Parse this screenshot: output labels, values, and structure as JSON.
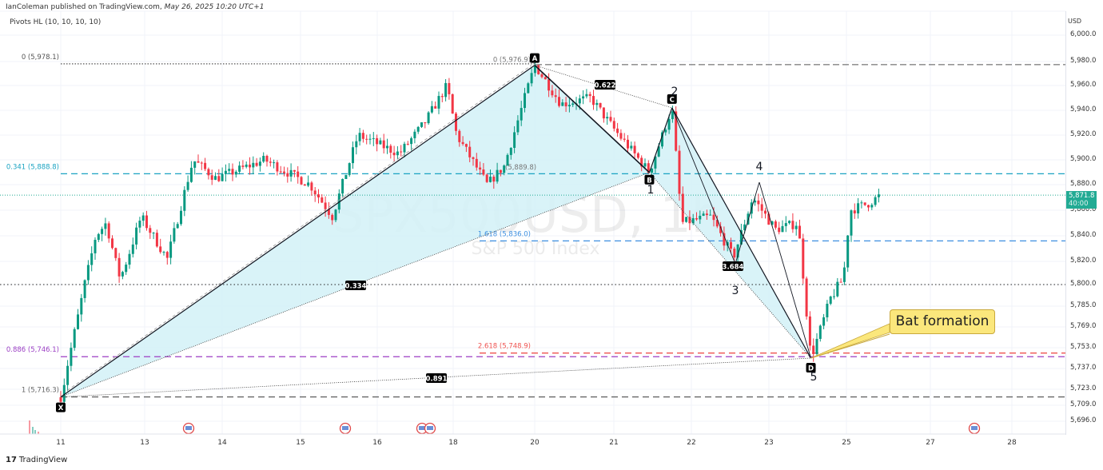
{
  "header": {
    "publisher": "IanColeman published on TradingView.com,",
    "date": "May 26, 2025 10:20 UTC+1"
  },
  "indicator": "Pivots HL (10, 10, 10, 10)",
  "watermark": {
    "symbol": "SPX500USD, 1h",
    "name": "S&P 500 Index"
  },
  "price_axis": {
    "currency": "USD",
    "ticks": [
      "6,000.0",
      "5,980.0",
      "5,960.0",
      "5,940.0",
      "5,920.0",
      "5,900.0",
      "5,880.0",
      "5,860.0",
      "5,840.0",
      "5,820.0",
      "5,800.0",
      "5,785.0",
      "5,769.0",
      "5,753.0",
      "5,737.0",
      "5,723.0",
      "5,709.0",
      "5,696.0"
    ]
  },
  "time_axis": {
    "ticks": [
      "11",
      "13",
      "14",
      "15",
      "16",
      "18",
      "20",
      "21",
      "22",
      "23",
      "25",
      "27",
      "28"
    ]
  },
  "last_price": {
    "value": "5,871.8",
    "countdown": "40:00",
    "color": "#22ab94"
  },
  "callout": "Bat formation",
  "footer": {
    "logo": "TradingView"
  },
  "colors": {
    "up": "#089981",
    "down": "#f23645",
    "fill": "#d2f1f7"
  },
  "chart_data": {
    "type": "candlestick",
    "title": "SPX500USD, 1h",
    "ylim": [
      5690,
      6005
    ],
    "price_path": [
      {
        "t": "11 00:00",
        "p": 5716
      },
      {
        "t": "11 10:00",
        "p": 5840
      },
      {
        "t": "11 13:00",
        "p": 5850
      },
      {
        "t": "11 17:00",
        "p": 5805
      },
      {
        "t": "11 23:00",
        "p": 5855
      },
      {
        "t": "13 07:00",
        "p": 5822
      },
      {
        "t": "13 15:00",
        "p": 5900
      },
      {
        "t": "13 22:00",
        "p": 5885
      },
      {
        "t": "14 13:00",
        "p": 5900
      },
      {
        "t": "15 03:00",
        "p": 5880
      },
      {
        "t": "15 10:00",
        "p": 5855
      },
      {
        "t": "15 18:00",
        "p": 5920
      },
      {
        "t": "16 07:00",
        "p": 5905
      },
      {
        "t": "16 15:00",
        "p": 5930
      },
      {
        "t": "16 22:00",
        "p": 5960
      },
      {
        "t": "18 01:00",
        "p": 5920
      },
      {
        "t": "18 10:00",
        "p": 5880
      },
      {
        "t": "18 15:00",
        "p": 5895
      },
      {
        "t": "20 00:00",
        "p": 5977
      },
      {
        "t": "20 08:00",
        "p": 5945
      },
      {
        "t": "20 17:00",
        "p": 5950
      },
      {
        "t": "21 00:00",
        "p": 5925
      },
      {
        "t": "21 11:00",
        "p": 5890
      },
      {
        "t": "21 18:00",
        "p": 5942
      },
      {
        "t": "21 21:00",
        "p": 5850
      },
      {
        "t": "22 06:00",
        "p": 5855
      },
      {
        "t": "22 13:00",
        "p": 5823
      },
      {
        "t": "22 19:00",
        "p": 5870
      },
      {
        "t": "23 02:00",
        "p": 5845
      },
      {
        "t": "23 09:00",
        "p": 5850
      },
      {
        "t": "23 13:00",
        "p": 5745
      },
      {
        "t": "23 19:00",
        "p": 5790
      },
      {
        "t": "23 23:00",
        "p": 5805
      },
      {
        "t": "25 01:00",
        "p": 5860
      },
      {
        "t": "25 06:00",
        "p": 5865
      },
      {
        "t": "25 10:00",
        "p": 5872
      }
    ],
    "pattern": {
      "points": [
        {
          "label": "X",
          "t": "11 00:00",
          "p": 5716.3
        },
        {
          "label": "A",
          "t": "20 00:00",
          "p": 5976.9
        },
        {
          "label": "B",
          "t": "21 11:00",
          "p": 5889.8
        },
        {
          "label": "C",
          "t": "21 18:00",
          "p": 5942
        },
        {
          "label": "D",
          "t": "23 13:00",
          "p": 5745
        }
      ],
      "ratios": [
        "0.334",
        "0.622",
        "3.684",
        "0.891"
      ],
      "waves": [
        "1",
        "2",
        "3",
        "4",
        "5"
      ]
    },
    "levels": [
      {
        "label": "0 (5,978.1)",
        "p": 5978.1,
        "color": "#555555"
      },
      {
        "label": "0.341 (5,888.8)",
        "p": 5888.8,
        "color": "#1aa3c2"
      },
      {
        "label": "0.886 (5,746.1)",
        "p": 5746.1,
        "color": "#9c3fc4"
      },
      {
        "label": "1 (5,716.3)",
        "p": 5716.3,
        "color": "#666666"
      },
      {
        "label": "1.618 (5,836.0)",
        "p": 5836.0,
        "color": "#3d8fe0"
      },
      {
        "label": "2.618 (5,748.9)",
        "p": 5748.9,
        "color": "#ef5350"
      }
    ],
    "xabcd_labels": {
      "a_level": "0 (5,976.9)",
      "b_level": "(5,889.8)"
    },
    "horizontal_line": 5800
  }
}
